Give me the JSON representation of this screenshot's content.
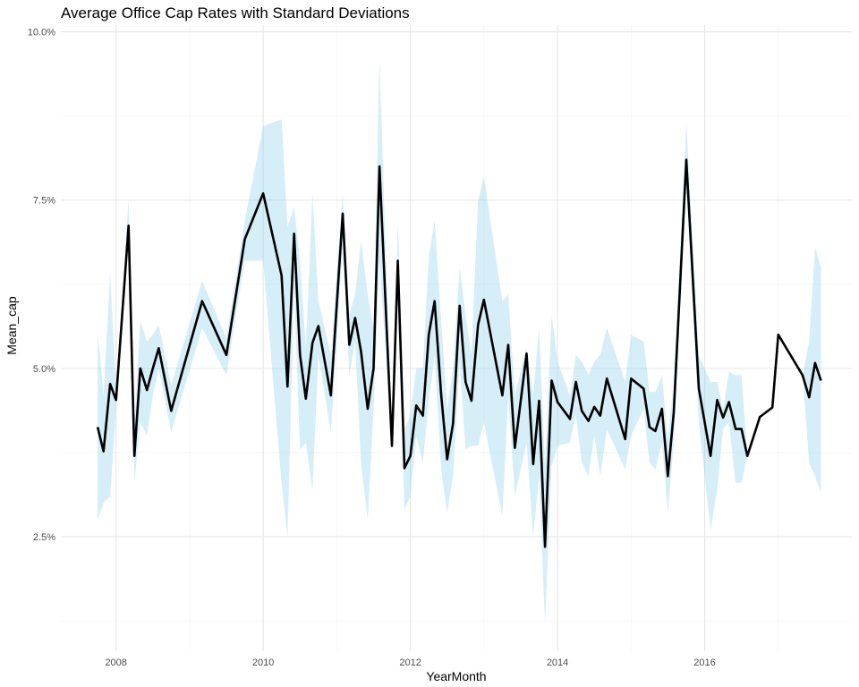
{
  "chart_data": {
    "type": "line",
    "title": "Average Office Cap Rates with Standard Deviations",
    "xlabel": "YearMonth",
    "ylabel": "Mean_cap",
    "xlim": [
      2007.25,
      2018.0
    ],
    "ylim": [
      0.8,
      10.1
    ],
    "x_ticks": [
      2008,
      2010,
      2012,
      2014,
      2016
    ],
    "x_minor_ticks": [
      2009,
      2011,
      2013,
      2015,
      2017
    ],
    "y_ticks": [
      {
        "value": 2.5,
        "label": "2.5%"
      },
      {
        "value": 5.0,
        "label": "5.0%"
      },
      {
        "value": 7.5,
        "label": "7.5%"
      },
      {
        "value": 10.0,
        "label": "10.0%"
      }
    ],
    "y_minor_ticks": [
      1.25,
      3.75,
      6.25,
      8.75
    ],
    "grid": true,
    "legend": "none",
    "colors": {
      "line": "#000000",
      "band": "#87ceeb"
    },
    "series": [
      {
        "x": [
          2007.75,
          2007.83,
          2007.92,
          2008.0,
          2008.17,
          2008.25,
          2008.33,
          2008.42,
          2008.5,
          2008.58,
          2008.75,
          2009.17,
          2009.5,
          2009.75,
          2010.0,
          2010.25,
          2010.33,
          2010.42,
          2010.5,
          2010.58,
          2010.67,
          2010.75,
          2010.92,
          2011.08,
          2011.17,
          2011.25,
          2011.33,
          2011.42,
          2011.5,
          2011.58,
          2011.75,
          2011.83,
          2011.92,
          2012.0,
          2012.08,
          2012.17,
          2012.25,
          2012.33,
          2012.42,
          2012.5,
          2012.58,
          2012.67,
          2012.75,
          2012.83,
          2012.92,
          2013.0,
          2013.25,
          2013.33,
          2013.42,
          2013.58,
          2013.67,
          2013.75,
          2013.83,
          2013.92,
          2014.0,
          2014.17,
          2014.25,
          2014.33,
          2014.42,
          2014.5,
          2014.58,
          2014.67,
          2014.92,
          2015.0,
          2015.17,
          2015.25,
          2015.33,
          2015.42,
          2015.5,
          2015.58,
          2015.75,
          2015.92,
          2016.08,
          2016.17,
          2016.25,
          2016.33,
          2016.42,
          2016.5,
          2016.58,
          2016.75,
          2016.92,
          2017.0,
          2017.33,
          2017.42,
          2017.5,
          2017.58
        ],
        "y": [
          4.13,
          3.77,
          4.77,
          4.53,
          7.12,
          3.7,
          5.0,
          4.68,
          5.0,
          5.3,
          4.37,
          6.0,
          5.2,
          6.92,
          7.6,
          6.38,
          4.73,
          7.0,
          5.2,
          4.55,
          5.38,
          5.63,
          4.6,
          7.3,
          5.35,
          5.75,
          5.25,
          4.4,
          5.0,
          8.0,
          3.85,
          6.6,
          3.52,
          3.7,
          4.45,
          4.3,
          5.5,
          6.0,
          4.6,
          3.65,
          4.18,
          5.93,
          4.8,
          4.52,
          5.65,
          6.02,
          4.6,
          5.35,
          3.82,
          5.22,
          3.58,
          4.52,
          2.35,
          4.82,
          4.5,
          4.25,
          4.8,
          4.37,
          4.22,
          4.43,
          4.3,
          4.85,
          3.95,
          4.85,
          4.7,
          4.13,
          4.07,
          4.4,
          3.4,
          4.35,
          8.1,
          4.7,
          3.7,
          4.53,
          4.27,
          4.5,
          4.1,
          4.1,
          3.7,
          4.28,
          4.42,
          5.5,
          4.9,
          4.57,
          5.08,
          4.82
        ],
        "sd_low": [
          2.75,
          3.0,
          3.1,
          4.4,
          7.1,
          3.3,
          4.2,
          4.0,
          4.6,
          5.0,
          4.05,
          5.6,
          4.9,
          6.6,
          6.6,
          3.3,
          2.5,
          6.2,
          3.8,
          3.9,
          3.2,
          5.2,
          4.05,
          6.8,
          4.9,
          5.4,
          3.6,
          2.75,
          4.4,
          6.6,
          3.85,
          6.0,
          2.9,
          3.1,
          4.0,
          3.6,
          4.5,
          5.2,
          3.5,
          2.85,
          3.4,
          5.1,
          3.8,
          3.85,
          3.85,
          4.2,
          2.8,
          4.6,
          3.1,
          3.9,
          2.5,
          3.4,
          1.2,
          3.55,
          3.85,
          3.9,
          4.3,
          3.6,
          3.4,
          4.0,
          3.4,
          4.1,
          3.5,
          4.0,
          4.4,
          3.6,
          3.5,
          3.9,
          2.85,
          3.9,
          7.8,
          4.2,
          2.6,
          3.2,
          4.1,
          4.2,
          3.3,
          3.3,
          3.7,
          4.28,
          4.42,
          5.5,
          4.9,
          3.6,
          3.4,
          3.15
        ],
        "sd_high": [
          5.55,
          4.6,
          6.4,
          4.65,
          7.5,
          4.2,
          5.7,
          5.4,
          5.5,
          5.65,
          4.75,
          6.3,
          5.45,
          7.2,
          8.6,
          8.7,
          7.1,
          7.4,
          6.6,
          5.3,
          7.6,
          6.0,
          5.2,
          7.6,
          5.8,
          6.1,
          6.9,
          6.1,
          5.6,
          9.6,
          3.86,
          7.2,
          4.1,
          4.3,
          5.0,
          5.0,
          6.65,
          7.2,
          5.7,
          4.4,
          5.0,
          6.5,
          5.8,
          5.2,
          7.5,
          7.85,
          6.0,
          6.1,
          4.6,
          5.3,
          4.6,
          5.6,
          3.55,
          5.8,
          5.1,
          4.6,
          5.2,
          5.1,
          4.9,
          5.1,
          5.2,
          5.6,
          4.8,
          5.5,
          5.4,
          4.65,
          4.65,
          4.9,
          3.95,
          4.8,
          8.65,
          5.2,
          4.8,
          4.8,
          4.4,
          4.95,
          4.9,
          4.9,
          3.7,
          4.28,
          4.42,
          5.5,
          4.9,
          5.4,
          6.8,
          6.5
        ]
      }
    ]
  }
}
